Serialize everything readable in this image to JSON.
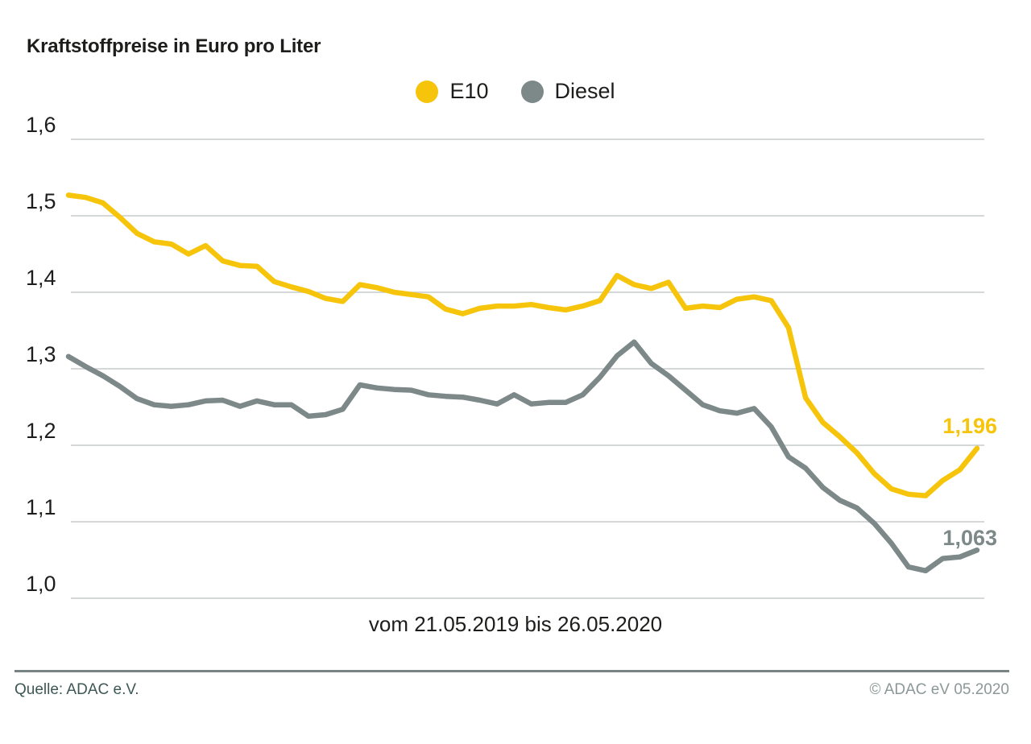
{
  "title": "Kraftstoffpreise in Euro pro Liter",
  "footer": {
    "source": "Quelle: ADAC e.V.",
    "copyright": "© ADAC eV 05.2020"
  },
  "chart_data": {
    "type": "line",
    "title": "Kraftstoffpreise in Euro pro Liter",
    "xlabel": "vom 21.05.2019 bis 26.05.2020",
    "ylabel": "Euro pro Liter",
    "x_start": "21.05.2019",
    "x_end": "26.05.2020",
    "x_interval": "weekly",
    "grid": "horizontal",
    "grid_color": "#c7cccc",
    "legend_position": "top-center",
    "ylim": [
      0.97,
      1.65
    ],
    "y_ticks": [
      1.0,
      1.1,
      1.2,
      1.3,
      1.4,
      1.5,
      1.6
    ],
    "y_tick_labels": [
      "1,0",
      "1,1",
      "1,2",
      "1,3",
      "1,4",
      "1,5",
      "1,6"
    ],
    "series": [
      {
        "name": "E10",
        "color": "#f6c50b",
        "end_label": "1,196",
        "end_value": 1.196,
        "values": [
          1.527,
          1.524,
          1.517,
          1.498,
          1.477,
          1.466,
          1.463,
          1.45,
          1.461,
          1.441,
          1.435,
          1.434,
          1.414,
          1.407,
          1.401,
          1.392,
          1.388,
          1.41,
          1.406,
          1.4,
          1.397,
          1.394,
          1.378,
          1.372,
          1.379,
          1.382,
          1.382,
          1.384,
          1.38,
          1.377,
          1.382,
          1.389,
          1.422,
          1.41,
          1.405,
          1.413,
          1.379,
          1.382,
          1.38,
          1.391,
          1.394,
          1.389,
          1.354,
          1.262,
          1.23,
          1.211,
          1.19,
          1.163,
          1.143,
          1.136,
          1.134,
          1.154,
          1.168,
          1.196
        ]
      },
      {
        "name": "Diesel",
        "color": "#7d8888",
        "end_label": "1,063",
        "end_value": 1.063,
        "values": [
          1.316,
          1.303,
          1.291,
          1.277,
          1.261,
          1.253,
          1.251,
          1.253,
          1.258,
          1.259,
          1.251,
          1.258,
          1.253,
          1.253,
          1.238,
          1.24,
          1.247,
          1.279,
          1.275,
          1.273,
          1.272,
          1.266,
          1.264,
          1.263,
          1.259,
          1.254,
          1.266,
          1.254,
          1.256,
          1.256,
          1.266,
          1.289,
          1.317,
          1.335,
          1.307,
          1.291,
          1.272,
          1.253,
          1.245,
          1.242,
          1.248,
          1.224,
          1.185,
          1.17,
          1.145,
          1.128,
          1.118,
          1.098,
          1.072,
          1.041,
          1.036,
          1.052,
          1.054,
          1.063
        ]
      }
    ]
  }
}
